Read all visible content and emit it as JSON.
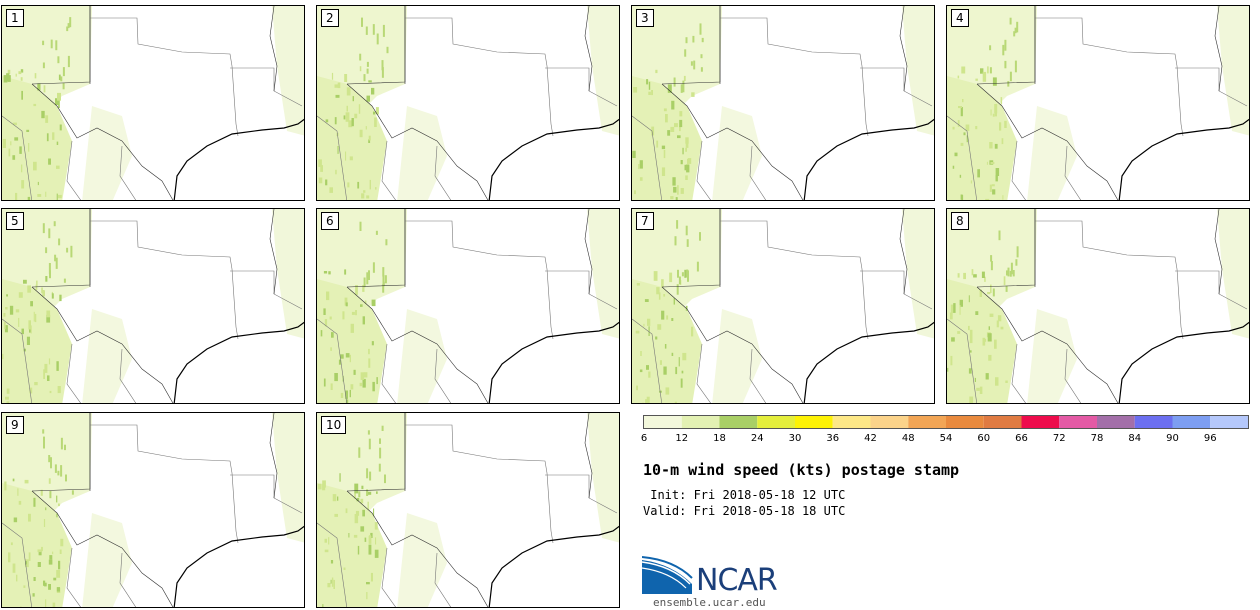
{
  "panels": [
    {
      "label": "1"
    },
    {
      "label": "2"
    },
    {
      "label": "3"
    },
    {
      "label": "4"
    },
    {
      "label": "5"
    },
    {
      "label": "6"
    },
    {
      "label": "7"
    },
    {
      "label": "8"
    },
    {
      "label": "9"
    },
    {
      "label": "10"
    }
  ],
  "colorbar": {
    "tick_labels": [
      "6",
      "12",
      "18",
      "24",
      "30",
      "36",
      "42",
      "48",
      "54",
      "60",
      "66",
      "72",
      "78",
      "84",
      "90",
      "96"
    ],
    "colors": [
      "#f3f8dc",
      "#e3f1b3",
      "#a9cf66",
      "#e4ee3c",
      "#fdf205",
      "#fde887",
      "#fbd38a",
      "#f2a555",
      "#e98a3e",
      "#e07b42",
      "#ee0c4c",
      "#e45aa5",
      "#a36fa9",
      "#6c6ff0",
      "#7d9ef2",
      "#b5c8fb"
    ]
  },
  "title": "10-m wind speed (kts) postage stamp",
  "init_text": " Init: Fri 2018-05-18 12 UTC",
  "valid_text": "Valid: Fri 2018-05-18 18 UTC",
  "logo": {
    "name": "ncar-logo",
    "text": "NCAR",
    "url": "ensemble.ucar.edu"
  }
}
